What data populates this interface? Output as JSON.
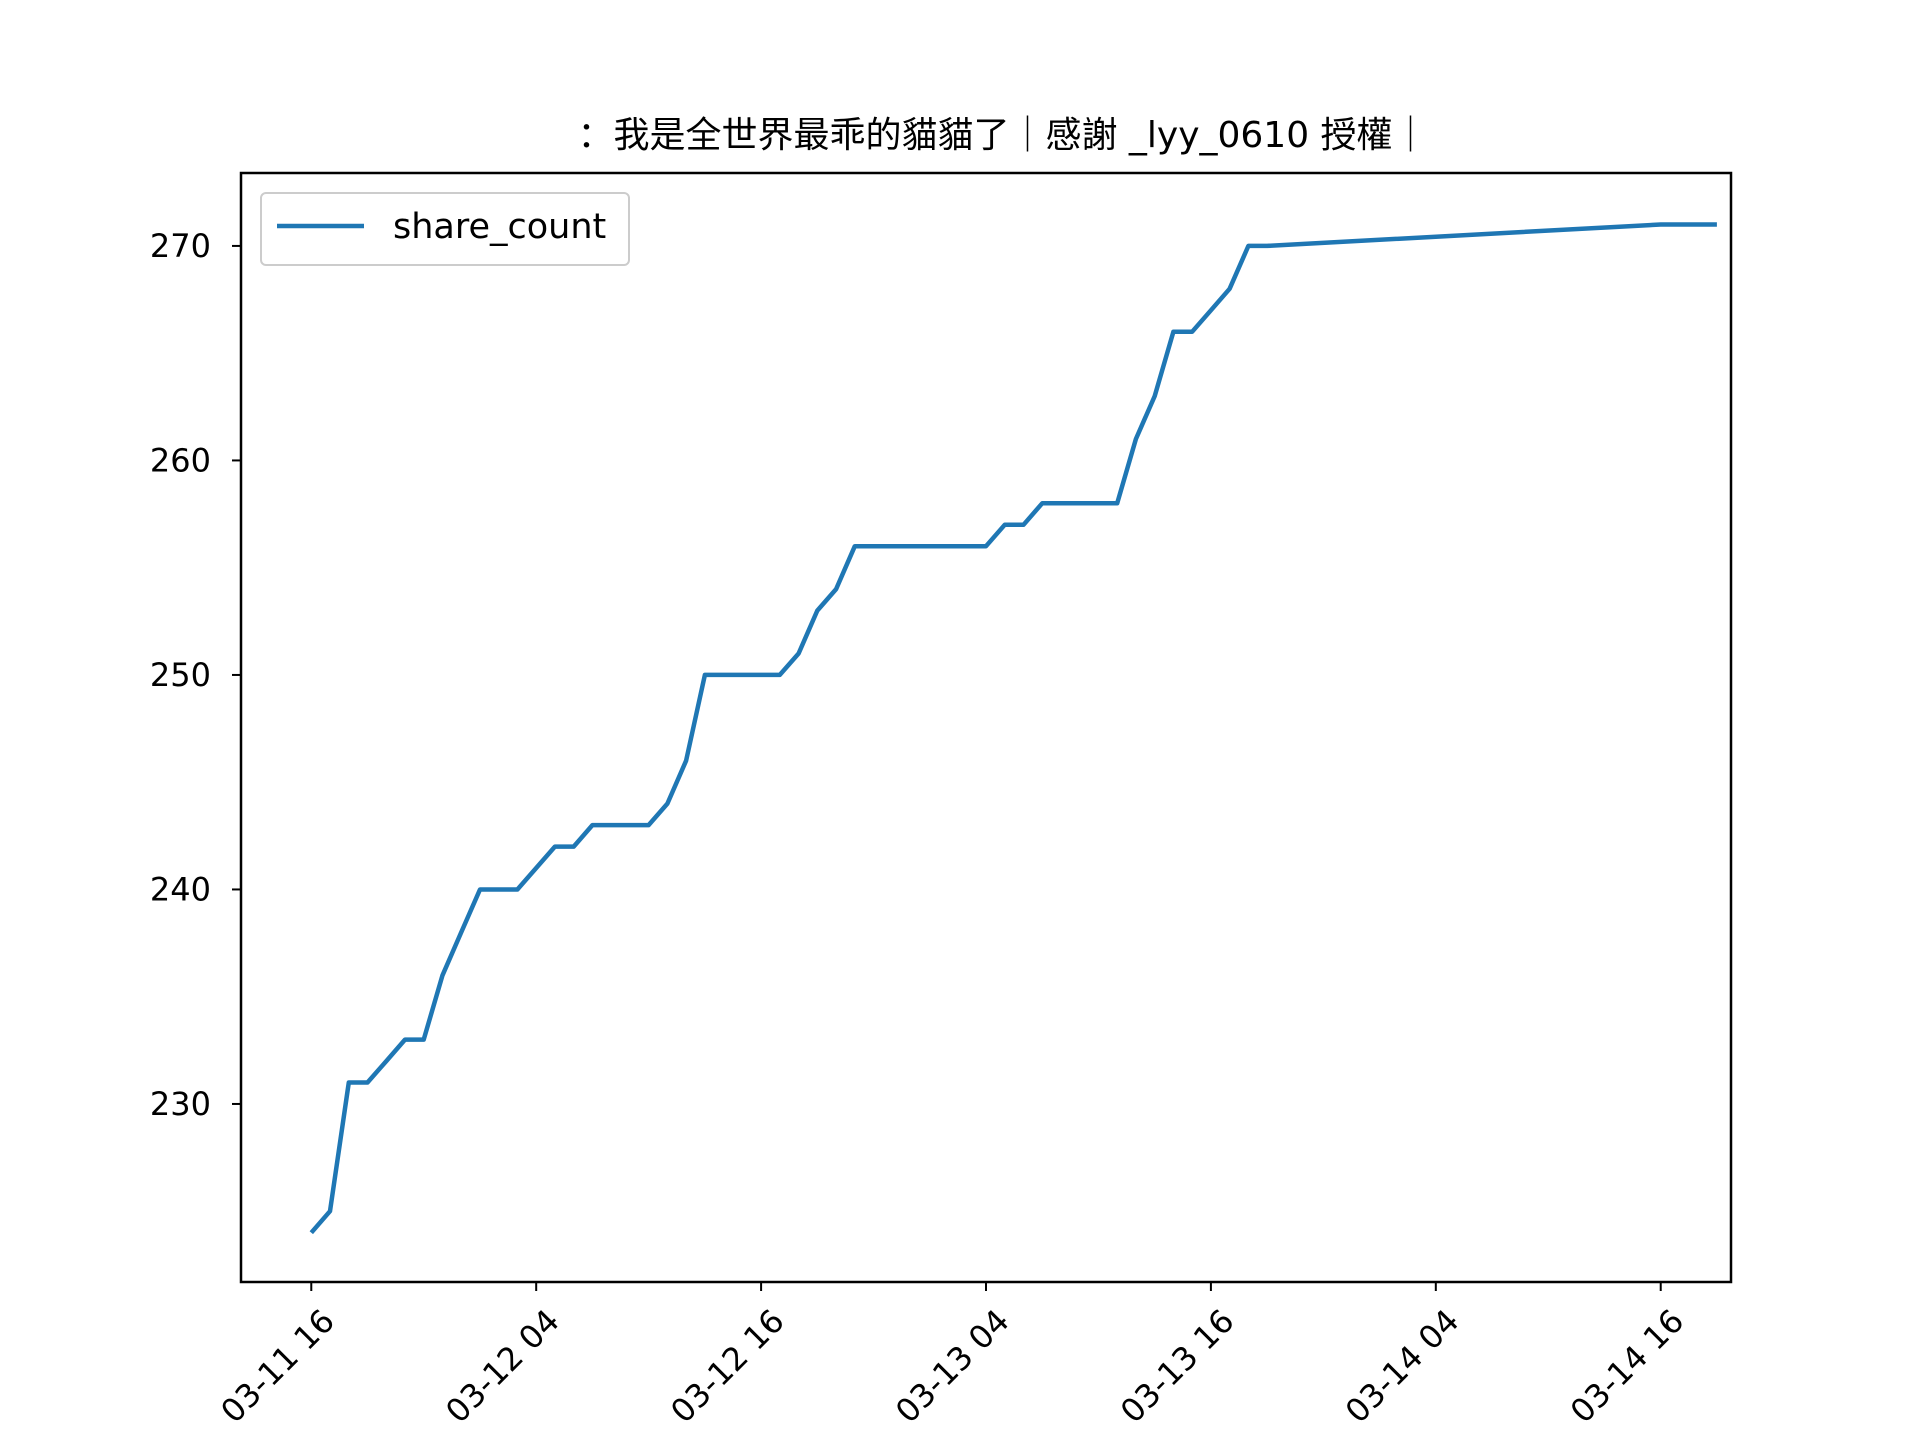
{
  "chart_data": {
    "type": "line",
    "title": "：我是全世界最乖的貓貓了｜感謝 _lyy_0610 授權｜",
    "xlabel": "",
    "ylabel": "",
    "x_tick_labels": [
      "03-11 16",
      "03-12 04",
      "03-12 16",
      "03-13 04",
      "03-13 16",
      "03-14 04",
      "03-14 16"
    ],
    "y_ticks": [
      230,
      240,
      250,
      260,
      270
    ],
    "xlim": [
      "03-11 12:15",
      "03-14 19:45"
    ],
    "ylim": [
      221.7,
      273.4
    ],
    "grid": false,
    "legend": {
      "position": "top-left",
      "entries": [
        "share_count"
      ]
    },
    "series": [
      {
        "name": "share_count",
        "color": "#1f77b4",
        "x": [
          "03-11 16:00",
          "03-11 17:00",
          "03-11 18:00",
          "03-11 19:00",
          "03-11 20:00",
          "03-11 21:00",
          "03-11 22:00",
          "03-11 23:00",
          "03-12 00:00",
          "03-12 01:00",
          "03-12 02:00",
          "03-12 03:00",
          "03-12 04:00",
          "03-12 05:00",
          "03-12 06:00",
          "03-12 07:00",
          "03-12 08:00",
          "03-12 09:00",
          "03-12 10:00",
          "03-12 11:00",
          "03-12 12:00",
          "03-12 13:00",
          "03-12 14:00",
          "03-12 15:00",
          "03-12 16:00",
          "03-12 17:00",
          "03-12 18:00",
          "03-12 19:00",
          "03-12 20:00",
          "03-12 21:00",
          "03-12 22:00",
          "03-12 23:00",
          "03-13 00:00",
          "03-13 01:00",
          "03-13 02:00",
          "03-13 03:00",
          "03-13 04:00",
          "03-13 05:00",
          "03-13 06:00",
          "03-13 07:00",
          "03-13 08:00",
          "03-13 09:00",
          "03-13 10:00",
          "03-13 11:00",
          "03-13 12:00",
          "03-13 13:00",
          "03-13 14:00",
          "03-13 15:00",
          "03-13 16:00",
          "03-13 17:00",
          "03-13 18:00",
          "03-13 19:00",
          "03-14 16:00",
          "03-14 19:00"
        ],
        "values": [
          224,
          225,
          231,
          231,
          232,
          233,
          233,
          236,
          238,
          240,
          240,
          240,
          241,
          242,
          242,
          243,
          243,
          243,
          243,
          244,
          246,
          250,
          250,
          250,
          250,
          250,
          251,
          253,
          254,
          256,
          256,
          256,
          256,
          256,
          256,
          256,
          256,
          257,
          257,
          258,
          258,
          258,
          258,
          258,
          261,
          263,
          266,
          266,
          267,
          268,
          270,
          270,
          271,
          271
        ]
      }
    ]
  }
}
